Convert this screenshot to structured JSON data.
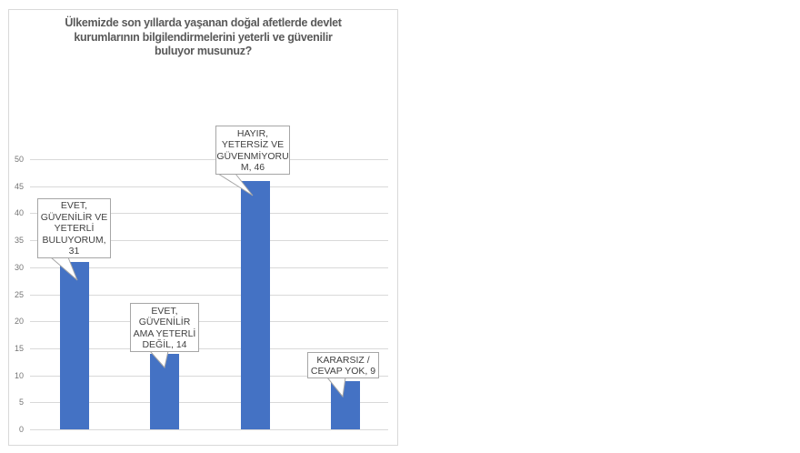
{
  "chart_data": {
    "type": "bar",
    "title": "Ülkemizde son yıllarda yaşanan doğal afetlerde devlet kurumlarının bilgilendirmelerini yeterli ve güvenilir buluyor musunuz?",
    "title_wrapped": "Ülkemizde son yıllarda yaşanan doğal afetlerde devlet\nkurumlarının bilgilendirmelerini yeterli ve güvenilir\nbuluyor musunuz?",
    "categories": [
      "EVET, GÜVENİLİR VE YETERLİ BULUYORUM",
      "EVET, GÜVENİLİR AMA YETERLİ DEĞİL",
      "HAYIR, YETERSİZ VE GÜVENMİYORUM",
      "KARARSIZ / CEVAP YOK"
    ],
    "values": [
      31,
      14,
      46,
      9
    ],
    "data_labels": [
      "EVET,\nGÜVENİLİR VE\nYETERLİ\nBULUYORUM,\n31",
      "EVET,\nGÜVENİLİR\nAMA YETERLİ\nDEĞİL, 14",
      "HAYIR,\nYETERSİZ VE\nGÜVENMİYORU\nM, 46",
      "KARARSIZ /\nCEVAP YOK, 9"
    ],
    "xlabel": "",
    "ylabel": "",
    "ylim": [
      0,
      50
    ],
    "yticks": [
      0,
      5,
      10,
      15,
      20,
      25,
      30,
      35,
      40,
      45,
      50
    ],
    "grid": true,
    "legend": false,
    "bar_color": "#4472C4",
    "colors": {
      "grid": "#D9D9D9",
      "chart_border": "#D9D9D9",
      "title_text": "#595959",
      "tick_text": "#757575",
      "label_text": "#404040",
      "label_border": "#A6A6A6",
      "background": "#FFFFFF"
    }
  }
}
